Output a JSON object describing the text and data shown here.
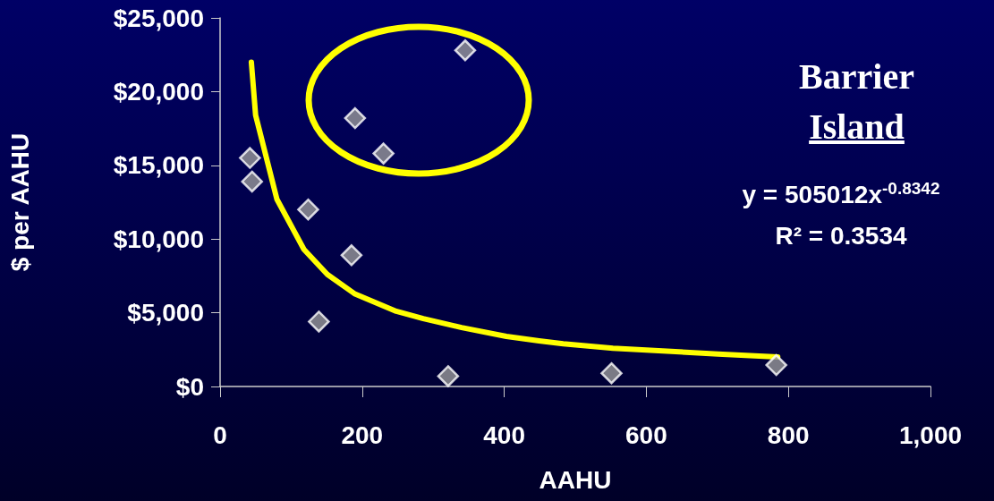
{
  "chart_data": {
    "type": "scatter",
    "title": "Barrier Island",
    "xlabel": "AAHU",
    "ylabel": "$ per AAHU",
    "annotations": [
      "y = 505012x$^{-0.8342}$",
      "R² = 0.3534"
    ],
    "series": [
      {
        "marker": "diamond",
        "color": "#999999",
        "x": [
          42,
          45,
          124,
          185,
          139,
          190,
          230,
          345,
          321,
          551,
          783
        ],
        "values": [
          15500,
          13900,
          12000,
          8900,
          4400,
          18200,
          15800,
          22800,
          700,
          900,
          1450
        ]
      },
      {
        "type": "line",
        "marker": "none",
        "line_style": "solid",
        "color": "#ffff00",
        "x": [
          44,
          50,
          80,
          118,
          151,
          189,
          248,
          286,
          340,
          403,
          449,
          483,
          553,
          701,
          785
        ],
        "values": [
          22000,
          18400,
          12700,
          9300,
          7600,
          6300,
          5100,
          4600,
          4000,
          3400,
          3100,
          2900,
          2600,
          2200,
          2000
        ]
      }
    ],
    "xlim": [
      0,
      1000
    ],
    "xticks": [
      0,
      200,
      400,
      600,
      800,
      {
        "value": 1000,
        "label": "1,000"
      }
    ],
    "ylim": [
      0,
      25000
    ],
    "yticks": [
      {
        "value": 0,
        "label": "$0"
      },
      {
        "value": 5000,
        "label": "$5,000"
      },
      {
        "value": 10000,
        "label": "$10,000"
      },
      {
        "value": 15000,
        "label": "$15,000"
      },
      {
        "value": 20000,
        "label": "$20,000"
      },
      {
        "value": 25000,
        "label": "$25,000"
      }
    ],
    "grid": false
  }
}
